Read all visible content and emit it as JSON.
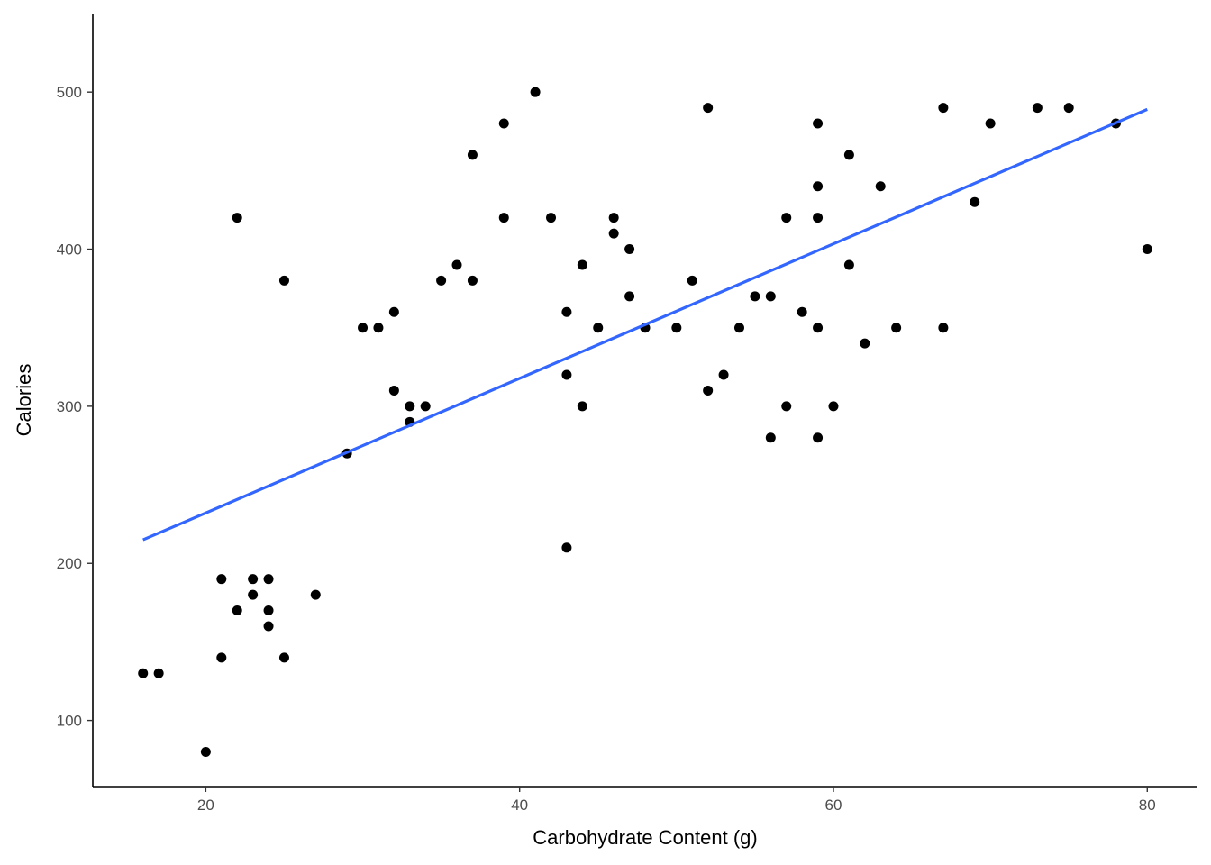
{
  "chart_data": {
    "type": "scatter",
    "title": "",
    "xlabel": "Carbohydrate Content (g)",
    "ylabel": "Calories",
    "xlim": [
      12.8,
      83.2
    ],
    "ylim": [
      57.9,
      550
    ],
    "xticks": [
      20,
      40,
      60,
      80
    ],
    "yticks": [
      100,
      200,
      300,
      400,
      500
    ],
    "grid": false,
    "legend": "none",
    "point_color": "#000000",
    "trend_color": "#3366ff",
    "series": [
      {
        "points": [
          [
            16,
            130
          ],
          [
            17,
            130
          ],
          [
            20,
            80
          ],
          [
            21,
            190
          ],
          [
            21,
            140
          ],
          [
            22,
            170
          ],
          [
            22,
            420
          ],
          [
            23,
            190
          ],
          [
            23,
            180
          ],
          [
            24,
            190
          ],
          [
            24,
            170
          ],
          [
            24,
            160
          ],
          [
            25,
            380
          ],
          [
            25,
            140
          ],
          [
            27,
            180
          ],
          [
            29,
            270
          ],
          [
            30,
            350
          ],
          [
            31,
            350
          ],
          [
            32,
            360
          ],
          [
            32,
            310
          ],
          [
            33,
            300
          ],
          [
            33,
            290
          ],
          [
            34,
            300
          ],
          [
            35,
            380
          ],
          [
            36,
            390
          ],
          [
            37,
            460
          ],
          [
            37,
            380
          ],
          [
            39,
            480
          ],
          [
            39,
            420
          ],
          [
            41,
            500
          ],
          [
            42,
            420
          ],
          [
            43,
            360
          ],
          [
            43,
            320
          ],
          [
            43,
            210
          ],
          [
            44,
            390
          ],
          [
            44,
            300
          ],
          [
            45,
            350
          ],
          [
            46,
            420
          ],
          [
            46,
            410
          ],
          [
            47,
            400
          ],
          [
            47,
            370
          ],
          [
            48,
            350
          ],
          [
            50,
            350
          ],
          [
            51,
            380
          ],
          [
            52,
            490
          ],
          [
            52,
            310
          ],
          [
            53,
            320
          ],
          [
            54,
            350
          ],
          [
            55,
            370
          ],
          [
            56,
            370
          ],
          [
            56,
            280
          ],
          [
            57,
            420
          ],
          [
            57,
            300
          ],
          [
            58,
            360
          ],
          [
            59,
            480
          ],
          [
            59,
            440
          ],
          [
            59,
            420
          ],
          [
            59,
            350
          ],
          [
            59,
            280
          ],
          [
            60,
            300
          ],
          [
            61,
            460
          ],
          [
            61,
            390
          ],
          [
            62,
            340
          ],
          [
            63,
            440
          ],
          [
            64,
            350
          ],
          [
            67,
            490
          ],
          [
            67,
            350
          ],
          [
            69,
            430
          ],
          [
            70,
            480
          ],
          [
            73,
            490
          ],
          [
            75,
            490
          ],
          [
            78,
            480
          ],
          [
            80,
            400
          ]
        ]
      }
    ],
    "trend_line": {
      "x": [
        16,
        80
      ],
      "y": [
        215,
        489
      ]
    }
  }
}
